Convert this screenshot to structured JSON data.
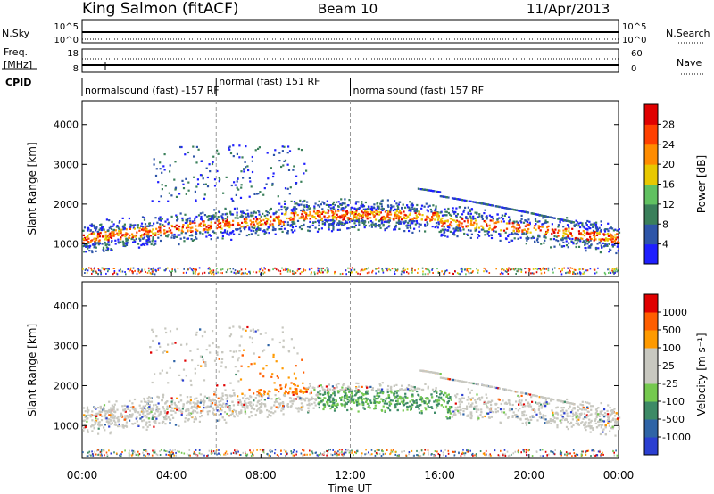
{
  "header": {
    "station": "King Salmon (fitACF)",
    "beam": "Beam 10",
    "date": "11/Apr/2013"
  },
  "chart_data": {
    "type": "heatmap",
    "x_unit": "Time UT",
    "xlabel": "Time UT",
    "xticks": [
      "00:00",
      "04:00",
      "08:00",
      "12:00",
      "16:00",
      "20:00",
      "00:00"
    ],
    "xlim_hours": [
      0,
      24
    ],
    "dashed_time_markers_hours": [
      6,
      12
    ],
    "strips": {
      "nsky": {
        "left_label": "N.Sky",
        "right_label": "N.Search",
        "left_ticks": [
          "10^5",
          "10^0"
        ],
        "right_ticks": [
          "10^5",
          "10^0"
        ]
      },
      "freq": {
        "left_label_line1": "Freq.",
        "left_label_line2": "[MHz]",
        "right_label": "Nave",
        "left_ticks": [
          "18",
          "8"
        ],
        "right_ticks": [
          "60",
          "0"
        ]
      },
      "cpid": {
        "label": "CPID",
        "segments": [
          {
            "label": "normalsound (fast) -157 RF",
            "start": 0,
            "end": 6
          },
          {
            "label": "normal (fast) 151 RF",
            "start": 6,
            "end": 12
          },
          {
            "label": "normalsound (fast) 157 RF",
            "start": 12,
            "end": 24
          }
        ]
      }
    },
    "panels": [
      {
        "id": "power",
        "ylabel": "Slant Range [km]",
        "yticks": [
          "1000",
          "2000",
          "3000",
          "4000"
        ],
        "ylim_km": [
          180,
          4600
        ],
        "colorbar": {
          "label": "Power [dB]",
          "ticks": [
            "4",
            "8",
            "12",
            "16",
            "20",
            "24",
            "28"
          ],
          "colors": [
            "#1f1fff",
            "#2e55a8",
            "#3a7f5a",
            "#61c161",
            "#e8c800",
            "#ff8c00",
            "#ff4000",
            "#e00000"
          ]
        }
      },
      {
        "id": "velocity",
        "ylabel": "Slant Range [km]",
        "yticks": [
          "1000",
          "2000",
          "3000",
          "4000"
        ],
        "ylim_km": [
          180,
          4600
        ],
        "colorbar": {
          "label": "Velocity [m s⁻¹]",
          "ticks": [
            "1000",
            "500",
            "100",
            "25",
            "-25",
            "-100",
            "-500",
            "-1000"
          ],
          "colors": [
            "#2b3fd1",
            "#2f64a6",
            "#3d8a66",
            "#75c94f",
            "#c8c8c0",
            "#c8c8c0",
            "#ff9a00",
            "#ff5e00",
            "#e00000"
          ]
        }
      }
    ]
  }
}
